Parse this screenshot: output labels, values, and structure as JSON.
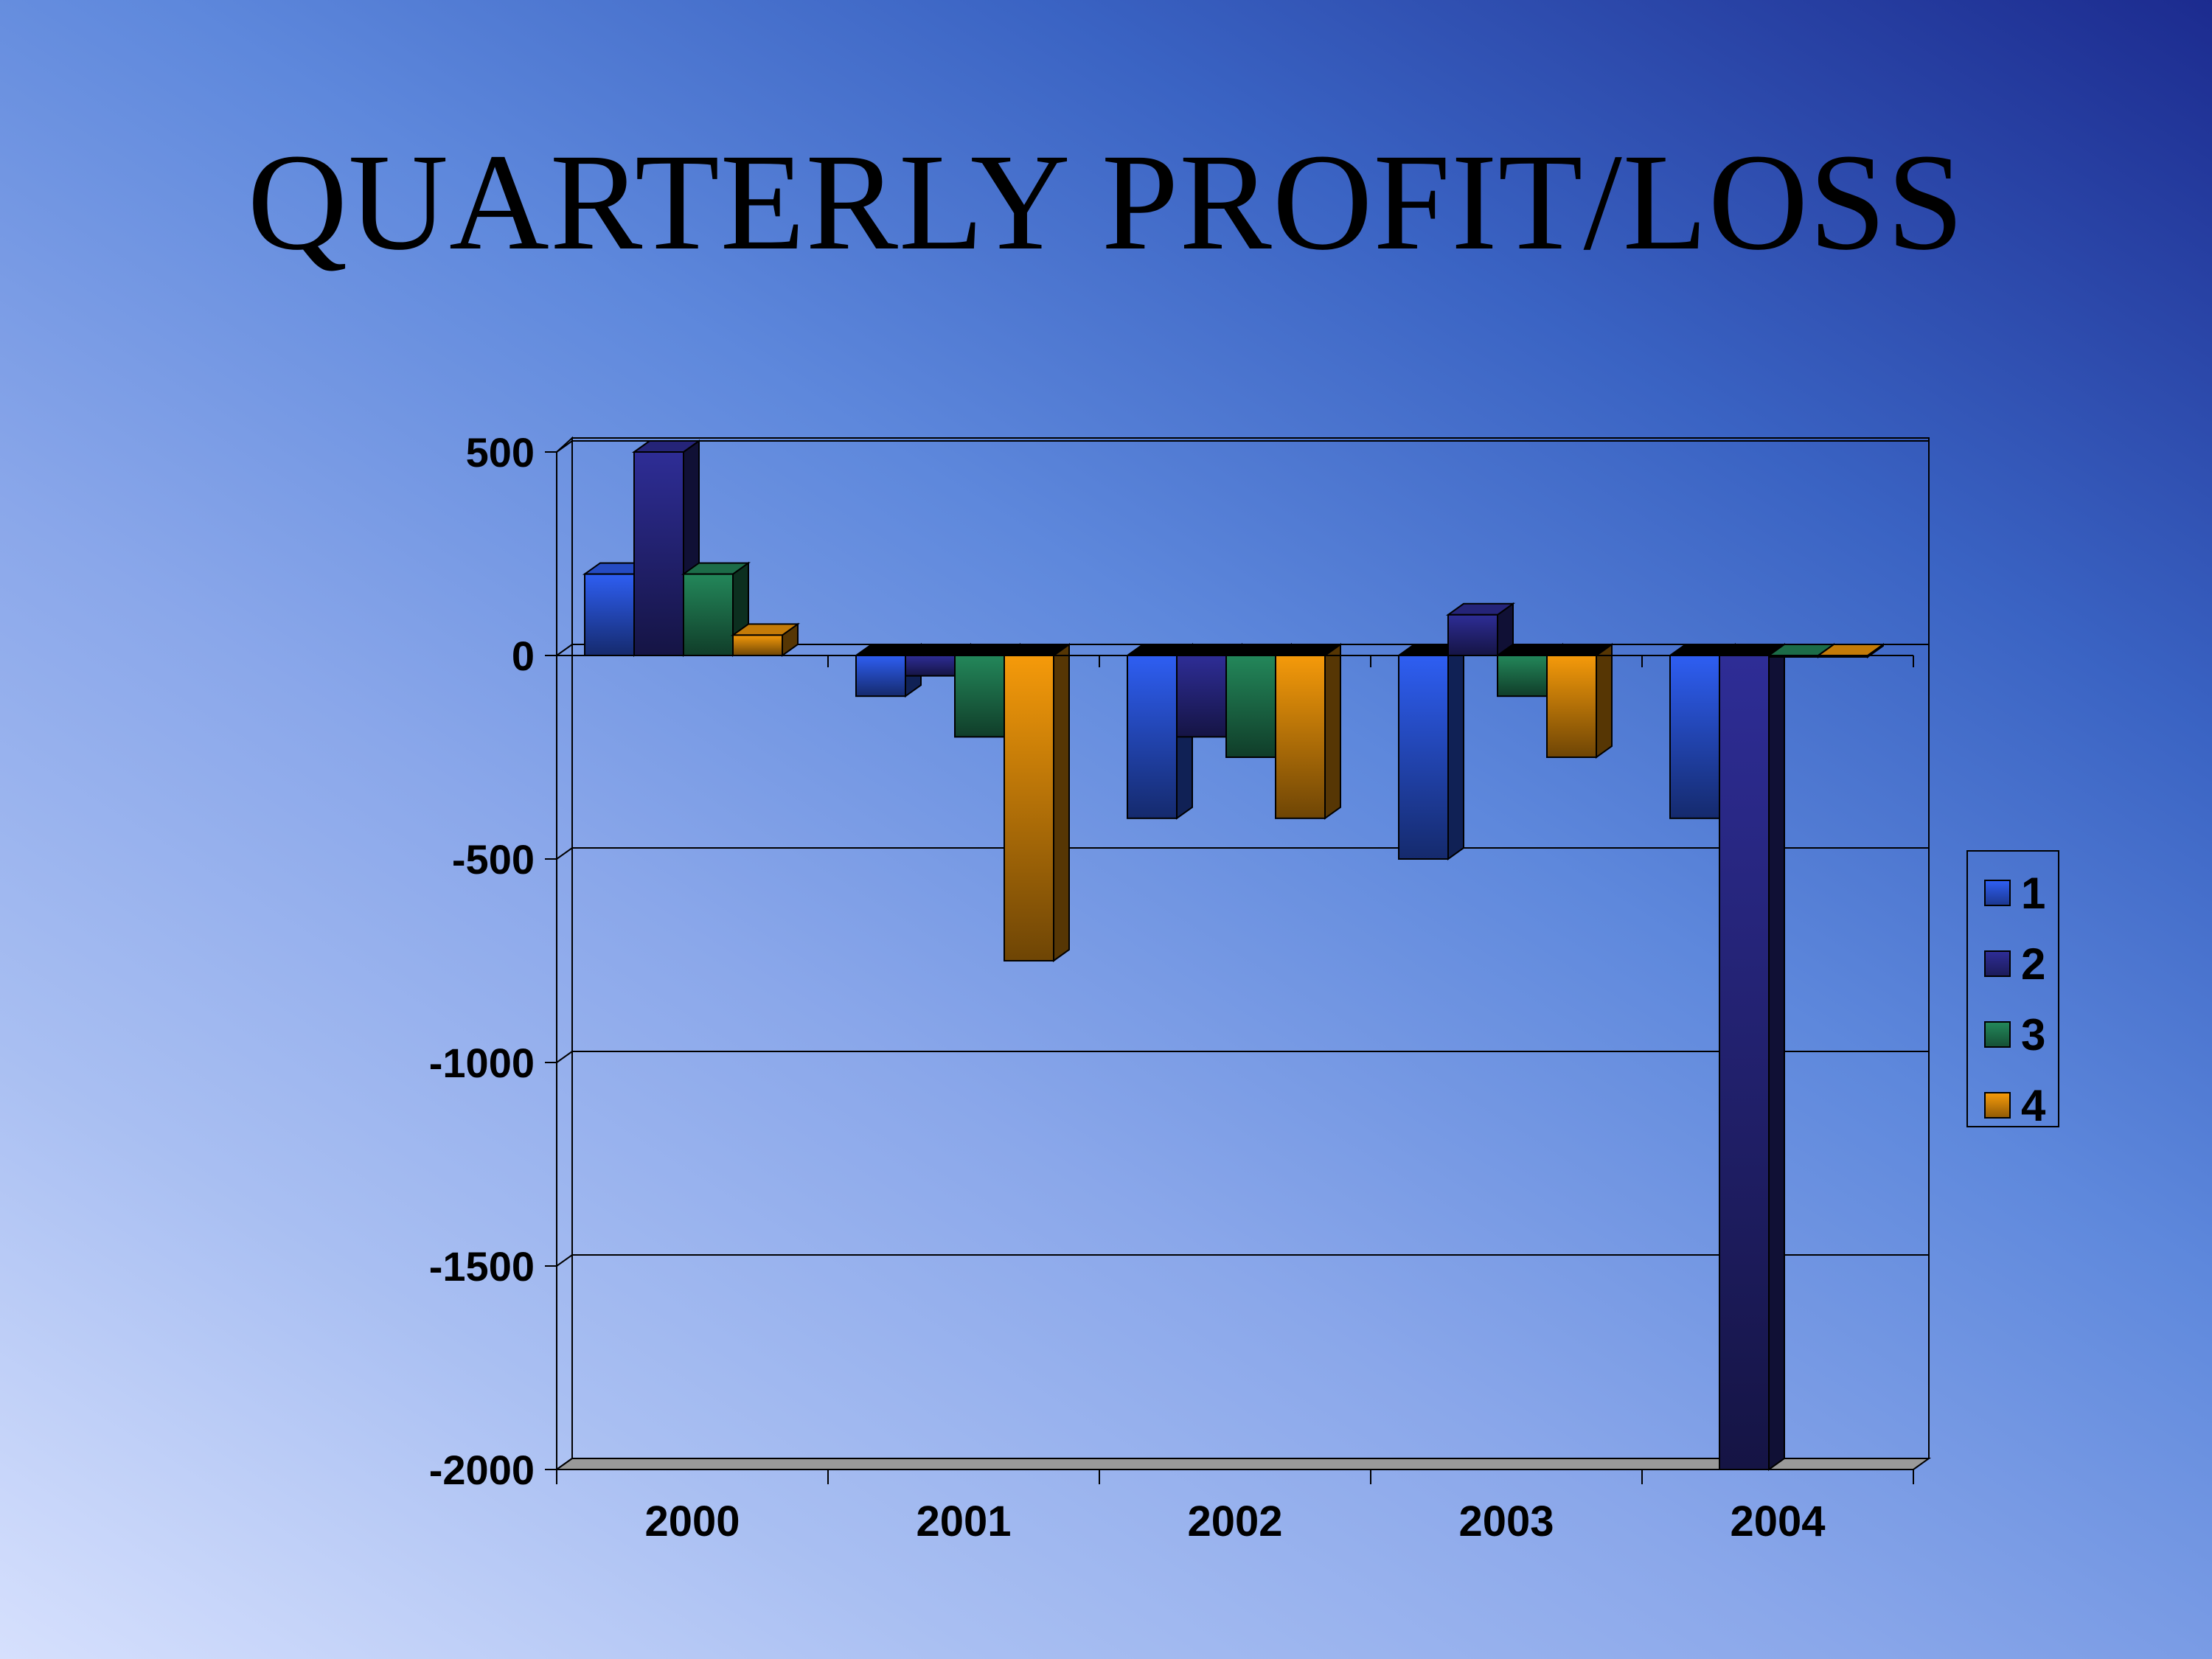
{
  "slide": {
    "title": "QUARTERLY PROFIT/LOSS"
  },
  "chart_data": {
    "type": "bar",
    "style": "3d-clustered-column",
    "title": "QUARTERLY PROFIT/LOSS",
    "xlabel": "",
    "ylabel": "",
    "categories": [
      "2000",
      "2001",
      "2002",
      "2003",
      "2004"
    ],
    "series": [
      {
        "name": "1",
        "values": [
          200,
          -100,
          -400,
          -500,
          -400
        ],
        "color": "#2e5ef2"
      },
      {
        "name": "2",
        "values": [
          500,
          -50,
          -200,
          100,
          -2000
        ],
        "color": "#2e2d96"
      },
      {
        "name": "3",
        "values": [
          200,
          -200,
          -250,
          -100,
          0
        ],
        "color": "#23875a"
      },
      {
        "name": "4",
        "values": [
          50,
          -750,
          -400,
          -250,
          0
        ],
        "color": "#f59a0a"
      }
    ],
    "ylim": [
      -2000,
      500
    ],
    "yticks": [
      "500",
      "0",
      "-500",
      "-1000",
      "-1500",
      "-2000"
    ],
    "grid": true,
    "legend": "right"
  }
}
